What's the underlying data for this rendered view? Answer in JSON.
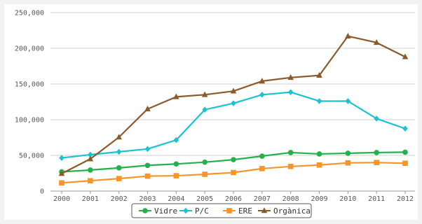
{
  "chart_data": {
    "type": "line",
    "categories": [
      "2000",
      "2001",
      "2002",
      "2003",
      "2004",
      "2005",
      "2006",
      "2007",
      "2008",
      "2009",
      "2010",
      "2011",
      "2012"
    ],
    "y_ticks": [
      "0",
      "50,000",
      "100,000",
      "150,000",
      "200,000",
      "250,000"
    ],
    "ylim": [
      0,
      250000
    ],
    "grid": "horizontal",
    "legend_position": "bottom",
    "series": [
      {
        "name": "Vidre",
        "color": "#22b14c",
        "marker": "circle",
        "values": [
          27000,
          29500,
          32500,
          36000,
          38000,
          40500,
          44000,
          49000,
          54000,
          52000,
          53000,
          54000,
          54500
        ]
      },
      {
        "name": "P/C",
        "color": "#19c3d1",
        "marker": "diamond",
        "values": [
          46500,
          51000,
          55000,
          59000,
          71500,
          114000,
          123000,
          135000,
          138500,
          126000,
          126000,
          101500,
          87500
        ]
      },
      {
        "name": "ERE",
        "color": "#f5962b",
        "marker": "square",
        "values": [
          11500,
          14500,
          17500,
          21000,
          21500,
          23500,
          26000,
          31500,
          34500,
          36500,
          39500,
          40000,
          39000
        ]
      },
      {
        "name": "Orgànica",
        "color": "#8b5a2b",
        "marker": "triangle",
        "values": [
          24500,
          45000,
          75500,
          115000,
          132000,
          135000,
          140000,
          154000,
          159000,
          162000,
          217000,
          208000,
          188000
        ]
      }
    ]
  }
}
